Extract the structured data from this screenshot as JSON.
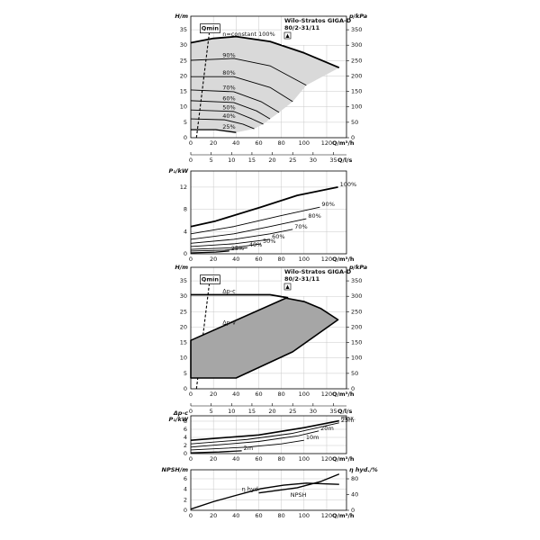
{
  "chart_data": [
    {
      "type": "line",
      "header": [
        "Wilo-Stratos GIGA-D",
        "80/2-31/11"
      ],
      "ylabel": "H/m",
      "y2label": "p/kPa",
      "xlabel": "Q/m³/h",
      "x2label": "Q/l/s",
      "xlim": [
        0,
        137.5
      ],
      "xticks": [
        0,
        20,
        40,
        60,
        80,
        100,
        120
      ],
      "x2lim": [
        0,
        38.2
      ],
      "x2ticks": [
        0,
        5,
        10,
        15,
        20,
        25,
        30,
        35
      ],
      "ylim": [
        0,
        39.4
      ],
      "yticks": [
        0,
        5,
        10,
        15,
        20,
        25,
        30,
        35
      ],
      "y2lim": [
        0,
        394
      ],
      "y2ticks": [
        0,
        50,
        100,
        150,
        200,
        250,
        300,
        350
      ],
      "grid": true,
      "shade": "#d9d9d9",
      "series": [
        {
          "name": "Qmin",
          "dash": true,
          "color": "#000000",
          "width": 1.1,
          "x": [
            5,
            17
          ],
          "values": [
            0,
            36
          ]
        },
        {
          "name": "n=constant 100%",
          "color": "#000000",
          "width": 1.8,
          "x": [
            0,
            20,
            40,
            70,
            100,
            131
          ],
          "values": [
            30.8,
            32.2,
            32.8,
            31.2,
            27.5,
            22.7
          ]
        },
        {
          "name": "90%",
          "color": "#000000",
          "width": 0.9,
          "x": [
            0,
            38,
            70,
            102
          ],
          "values": [
            25.1,
            25.7,
            23.3,
            17
          ]
        },
        {
          "name": "80%",
          "color": "#000000",
          "width": 0.9,
          "x": [
            0,
            38,
            70,
            90
          ],
          "values": [
            19.8,
            19.8,
            16.3,
            11.7
          ]
        },
        {
          "name": "70%",
          "color": "#000000",
          "width": 0.9,
          "x": [
            0,
            38,
            62,
            78
          ],
          "values": [
            15.5,
            14.9,
            11.7,
            8.2
          ]
        },
        {
          "name": "60%",
          "color": "#000000",
          "width": 0.9,
          "x": [
            0,
            38,
            58,
            70
          ],
          "values": [
            12,
            11.4,
            8.7,
            6.1
          ]
        },
        {
          "name": "50%",
          "color": "#000000",
          "width": 0.9,
          "x": [
            0,
            38,
            54,
            64
          ],
          "values": [
            9,
            8.5,
            6.1,
            4.4
          ]
        },
        {
          "name": "40%",
          "color": "#000000",
          "width": 0.9,
          "x": [
            0,
            30,
            46,
            56
          ],
          "values": [
            6.1,
            5.8,
            4.4,
            2.9
          ]
        },
        {
          "name": "25%",
          "color": "#000000",
          "width": 1.3,
          "x": [
            0,
            22,
            40
          ],
          "values": [
            2.6,
            2.6,
            1.7
          ]
        }
      ]
    },
    {
      "type": "line",
      "ylabel": "P₁/kW",
      "xlabel": "Q/m³/h",
      "xlim": [
        0,
        137.5
      ],
      "xticks": [
        0,
        20,
        40,
        60,
        80,
        100,
        120
      ],
      "ylim": [
        0,
        14.9
      ],
      "yticks": [
        0,
        4,
        8,
        12
      ],
      "grid": true,
      "series": [
        {
          "name": "100%",
          "color": "#000000",
          "width": 1.8,
          "x": [
            0,
            22,
            62,
            94,
            130
          ],
          "values": [
            4.9,
            5.9,
            8.4,
            10.5,
            12
          ]
        },
        {
          "name": "90%",
          "color": "#000000",
          "width": 0.9,
          "x": [
            0,
            38,
            78,
            114
          ],
          "values": [
            3.6,
            4.9,
            6.8,
            8.4
          ]
        },
        {
          "name": "80%",
          "color": "#000000",
          "width": 0.9,
          "x": [
            0,
            38,
            70,
            102
          ],
          "values": [
            2.6,
            3.6,
            4.9,
            6.3
          ]
        },
        {
          "name": "70%",
          "color": "#000000",
          "width": 0.9,
          "x": [
            0,
            38,
            70,
            90
          ],
          "values": [
            1.9,
            2.6,
            3.6,
            4.4
          ]
        },
        {
          "name": "60%",
          "color": "#000000",
          "width": 0.9,
          "x": [
            0,
            38,
            70
          ],
          "values": [
            1.3,
            1.8,
            2.6
          ]
        },
        {
          "name": "50%",
          "color": "#000000",
          "width": 0.9,
          "x": [
            0,
            38,
            62
          ],
          "values": [
            0.8,
            1.1,
            1.8
          ]
        },
        {
          "name": "40%",
          "color": "#000000",
          "width": 0.9,
          "x": [
            0,
            30,
            50
          ],
          "values": [
            0.5,
            0.65,
            1.1
          ]
        },
        {
          "name": "25%",
          "color": "#000000",
          "width": 1.3,
          "x": [
            0,
            22,
            34
          ],
          "values": [
            0.16,
            0.3,
            0.5
          ]
        }
      ]
    },
    {
      "type": "line",
      "header": [
        "Wilo-Stratos GIGA-D",
        "80/2-31/11"
      ],
      "ylabel": "H/m",
      "y2label": "p/kPa",
      "xlabel": "Q/m³/h",
      "x2label": "Q/l/s",
      "xlim": [
        0,
        137.5
      ],
      "xticks": [
        0,
        20,
        40,
        60,
        80,
        100,
        120
      ],
      "x2lim": [
        0,
        38.2
      ],
      "x2ticks": [
        0,
        5,
        10,
        15,
        20,
        25,
        30,
        35
      ],
      "ylim": [
        0,
        39.4
      ],
      "yticks": [
        0,
        5,
        10,
        15,
        20,
        25,
        30,
        35
      ],
      "y2lim": [
        0,
        394
      ],
      "y2ticks": [
        0,
        50,
        100,
        150,
        200,
        250,
        300,
        350
      ],
      "grid": true,
      "series": [
        {
          "name": "Qmin",
          "dash": true,
          "color": "#000000",
          "width": 1.1,
          "x": [
            5,
            17
          ],
          "values": [
            0,
            36
          ]
        },
        {
          "name": "Δp-v",
          "color": "#000000",
          "fill": "#a6a6a6",
          "width": 1.6,
          "x": [
            0,
            84,
            100,
            115,
            130,
            90,
            40,
            0
          ],
          "values": [
            15.7,
            29.4,
            28.3,
            26,
            22.4,
            12,
            3.5,
            3.5
          ]
        },
        {
          "name": "Δp-c",
          "color": "#000000",
          "width": 1.8,
          "x": [
            0,
            70,
            86
          ],
          "values": [
            30.5,
            30.5,
            29.5
          ]
        }
      ]
    },
    {
      "type": "line",
      "ylabel": [
        "Δp-c",
        "P₁/kW"
      ],
      "xlabel": "Q/m³/h",
      "xlim": [
        0,
        137.5
      ],
      "xticks": [
        0,
        20,
        40,
        60,
        80,
        100,
        120
      ],
      "ylim": [
        0,
        9.33
      ],
      "yticks": [
        0,
        2,
        4,
        6,
        8
      ],
      "grid": true,
      "series": [
        {
          "name": "max.",
          "color": "#000000",
          "width": 1.6,
          "x": [
            0,
            60,
            100,
            131
          ],
          "values": [
            3.3,
            4.6,
            6.4,
            8.1
          ]
        },
        {
          "name": "25m",
          "color": "#000000",
          "width": 0.9,
          "x": [
            0,
            50,
            90,
            131
          ],
          "values": [
            2.4,
            3.5,
            5,
            7.6
          ]
        },
        {
          "name": "20m",
          "color": "#000000",
          "width": 0.9,
          "x": [
            0,
            60,
            95,
            113
          ],
          "values": [
            1.6,
            3,
            4.4,
            5.6
          ]
        },
        {
          "name": "10m",
          "color": "#000000",
          "width": 0.9,
          "x": [
            0,
            50,
            80,
            100
          ],
          "values": [
            0.9,
            1.6,
            2.4,
            3.3
          ]
        },
        {
          "name": "2m",
          "color": "#000000",
          "width": 1.3,
          "x": [
            0,
            25,
            45
          ],
          "values": [
            0.2,
            0.4,
            0.7
          ]
        }
      ]
    },
    {
      "type": "line",
      "ylabel": "NPSH/m",
      "y2label": "η hyd./%",
      "xlabel": "Q/m³/h",
      "xlim": [
        0,
        137.5
      ],
      "xticks": [
        0,
        20,
        40,
        60,
        80,
        100,
        120
      ],
      "ylim": [
        0,
        7.71
      ],
      "yticks": [
        0,
        2,
        4,
        6
      ],
      "y2lim": [
        0,
        102.9
      ],
      "y2ticks": [
        0,
        40,
        80
      ],
      "grid": true,
      "series": [
        {
          "name": "η hyd.",
          "axis": "y2",
          "color": "#000000",
          "width": 1.4,
          "x": [
            0,
            20,
            40,
            62,
            82,
            102,
            131
          ],
          "values": [
            3,
            22,
            38,
            55,
            64,
            69,
            66
          ]
        },
        {
          "name": "NPSH",
          "color": "#000000",
          "width": 1.4,
          "x": [
            60,
            94,
            115,
            131
          ],
          "values": [
            3.3,
            4.3,
            5.5,
            6.9
          ]
        }
      ]
    }
  ]
}
